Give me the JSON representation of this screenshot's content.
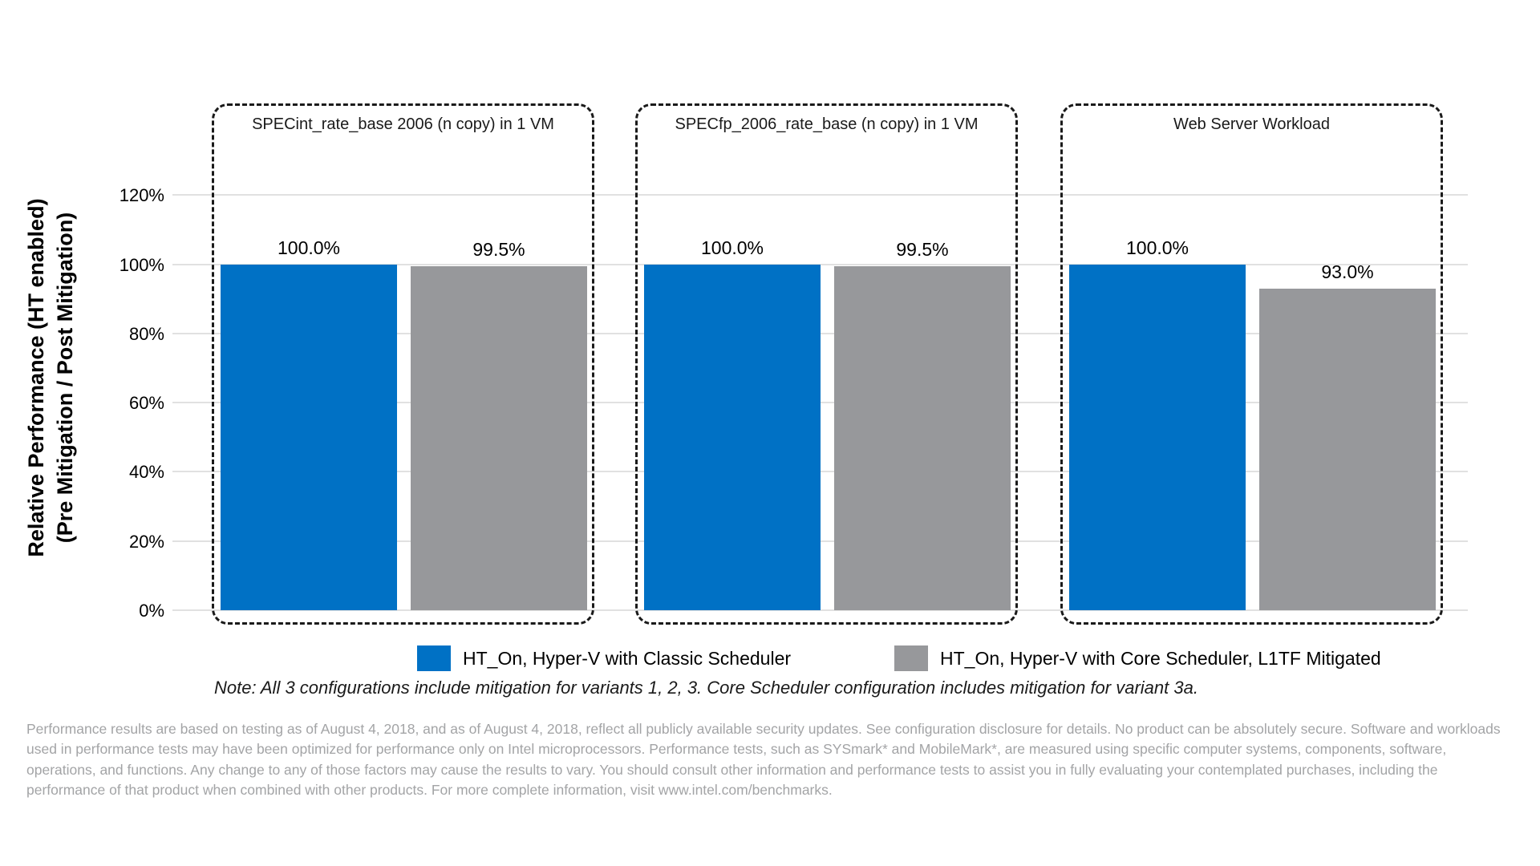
{
  "chart_data": {
    "type": "bar",
    "ylabel_line1": "Relative Performance (HT enabled)",
    "ylabel_line2": "(Pre Mitigation / Post Mitigation)",
    "ylim": [
      0,
      130
    ],
    "grid": true,
    "legend_position": "bottom",
    "y_ticks": [
      {
        "label": "120%",
        "value": 120
      },
      {
        "label": "100%",
        "value": 100
      },
      {
        "label": "80%",
        "value": 80
      },
      {
        "label": "60%",
        "value": 60
      },
      {
        "label": "40%",
        "value": 40
      },
      {
        "label": "20%",
        "value": 20
      },
      {
        "label": "0%",
        "value": 0
      }
    ],
    "groups": [
      {
        "label": "SPECint_rate_base 2006 (n copy) in 1 VM",
        "values": [
          100.0,
          99.5
        ],
        "value_labels": [
          "100.0%",
          "99.5%"
        ]
      },
      {
        "label": "SPECfp_2006_rate_base (n copy) in 1 VM",
        "values": [
          100.0,
          99.5
        ],
        "value_labels": [
          "100.0%",
          "99.5%"
        ]
      },
      {
        "label": "Web Server Workload",
        "values": [
          100.0,
          93.0
        ],
        "value_labels": [
          "100.0%",
          "93.0%"
        ]
      }
    ],
    "series": [
      {
        "name": "HT_On, Hyper-V with Classic Scheduler",
        "color": "#0071C5",
        "values": [
          100.0,
          100.0,
          100.0
        ]
      },
      {
        "name": "HT_On, Hyper-V with Core Scheduler, L1TF Mitigated",
        "color": "#97989B",
        "values": [
          99.5,
          99.5,
          93.0
        ]
      }
    ]
  },
  "note": "Note: All 3 configurations include mitigation for variants 1, 2, 3. Core Scheduler configuration includes mitigation for variant 3a.",
  "disclaimer": "Performance results are based on testing as of August 4, 2018, and as of August 4, 2018, reflect all publicly available security updates. See configuration disclosure for details. No product can be absolutely secure. Software and workloads used in performance tests may have been optimized for performance only on Intel microprocessors. Performance tests, such as SYSmark* and MobileMark*, are measured using specific computer systems, components, software, operations, and functions. Any change to any of those factors may cause the results to vary. You should consult other information and performance tests to assist you in fully evaluating your contemplated purchases, including the performance of that product when combined with other products. For more complete information, visit www.intel.com/benchmarks.",
  "colors": {
    "bar_blue": "#0071C5",
    "bar_gray": "#97989B",
    "gridline": "#e1e1e1",
    "disclaimer_text": "#a3a4a6"
  }
}
